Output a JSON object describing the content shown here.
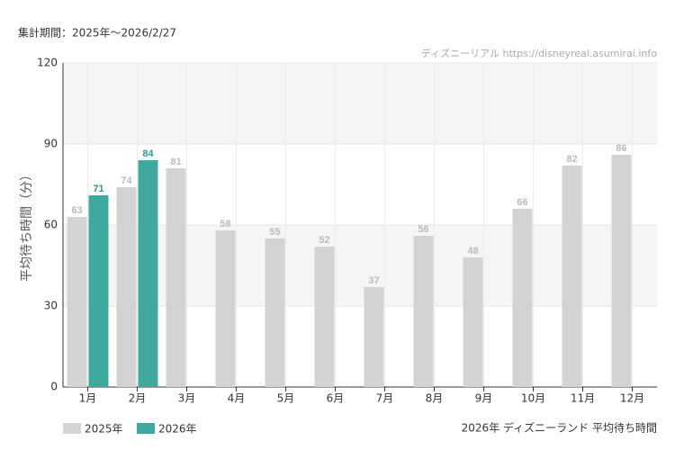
{
  "header": "集計期間：2025年～2026/2/27",
  "watermark": "ディズニーリアル https://disneyreal.asumirai.info",
  "footer": "2026年 ディズニーランド 平均待ち時間",
  "chart_data": {
    "type": "bar",
    "y_label": "平均待ち時間（分）",
    "categories": [
      "1月",
      "2月",
      "3月",
      "4月",
      "5月",
      "6月",
      "7月",
      "8月",
      "9月",
      "10月",
      "11月",
      "12月"
    ],
    "series": [
      {
        "name": "2025年",
        "color": "#d3d3d3",
        "label_color": "#bbbbbb",
        "values": [
          63,
          74,
          81,
          58,
          55,
          52,
          37,
          56,
          48,
          66,
          82,
          86
        ]
      },
      {
        "name": "2026年",
        "color": "#3fa99f",
        "label_color": "#2f9a90",
        "values": [
          71,
          84,
          null,
          null,
          null,
          null,
          null,
          null,
          null,
          null,
          null,
          null
        ]
      }
    ],
    "ylim": [
      0,
      120
    ],
    "yticks": [
      0,
      30,
      60,
      90,
      120
    ],
    "grid": true
  }
}
